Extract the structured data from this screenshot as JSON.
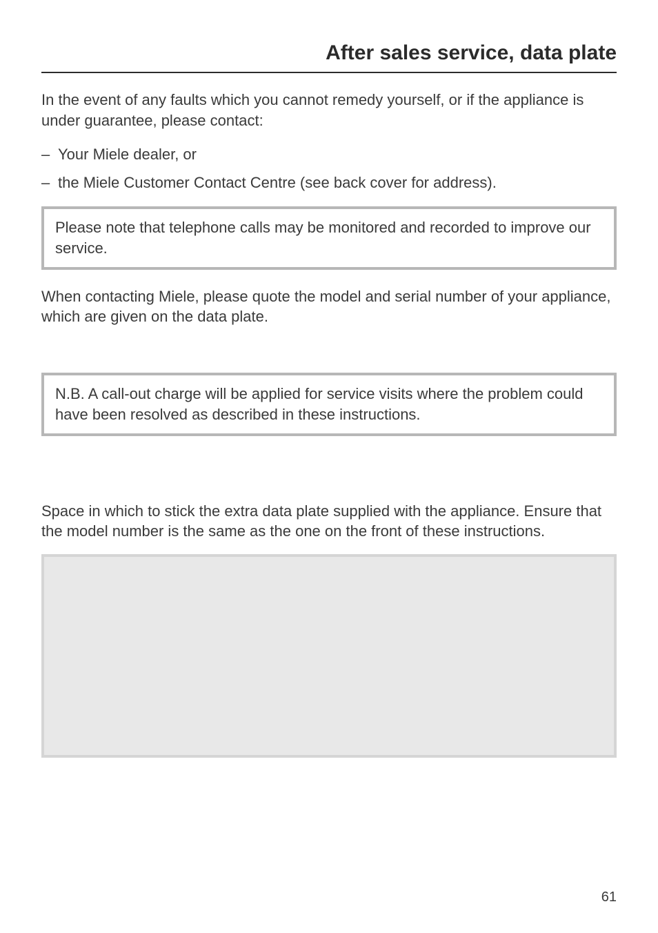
{
  "header": {
    "title": "After sales service, data plate"
  },
  "intro": "In the event of any faults which you cannot remedy yourself, or if the appliance is under guarantee, please contact:",
  "bulletDash": "–",
  "bullets": [
    "Your Miele dealer, or",
    "the Miele Customer Contact Centre (see back cover for address)."
  ],
  "callout1": "Please note that telephone calls may be monitored and recorded to improve our service.",
  "paraAfterCallout1": "When contacting Miele, please quote the model and serial number of your appliance, which are given on the data plate.",
  "callout2": "N.B. A call-out charge will be applied for service visits where the problem could have been resolved as described in these instructions.",
  "paraDataPlate": "Space in which to stick the extra data plate supplied with the appliance. Ensure that the model number is the same as the one on the front of these instructions.",
  "dataPlateBox": {
    "background": "#e8e8e8",
    "border": "#d5d5d5"
  },
  "pageNumber": "61"
}
